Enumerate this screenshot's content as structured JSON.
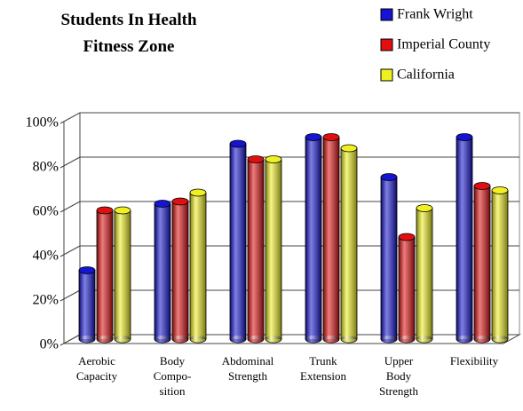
{
  "chart_data": {
    "type": "bar",
    "title": "Students In Health\nFitness Zone",
    "categories": [
      "Aerobic\nCapacity",
      "Body\nCompo-\nsition",
      "Abdominal\nStrength",
      "Trunk\nExtension",
      "Upper\nBody\nStrength",
      "Flexibility"
    ],
    "series": [
      {
        "name": "Frank Wright",
        "color": "#1414d2",
        "values": [
          31,
          61,
          88,
          91,
          73,
          91
        ]
      },
      {
        "name": "Imperial County",
        "color": "#e01010",
        "values": [
          58,
          62,
          81,
          91,
          46,
          69
        ]
      },
      {
        "name": "California",
        "color": "#f0f020",
        "values": [
          58,
          66,
          81,
          86,
          59,
          67
        ]
      }
    ],
    "ylim": [
      0,
      100
    ],
    "yticks": [
      {
        "value": 0,
        "label": "0%"
      },
      {
        "value": 20,
        "label": "20%"
      },
      {
        "value": 40,
        "label": "40%"
      },
      {
        "value": 60,
        "label": "60%"
      },
      {
        "value": 80,
        "label": "80%"
      },
      {
        "value": 100,
        "label": "100%"
      }
    ],
    "grid": true
  }
}
